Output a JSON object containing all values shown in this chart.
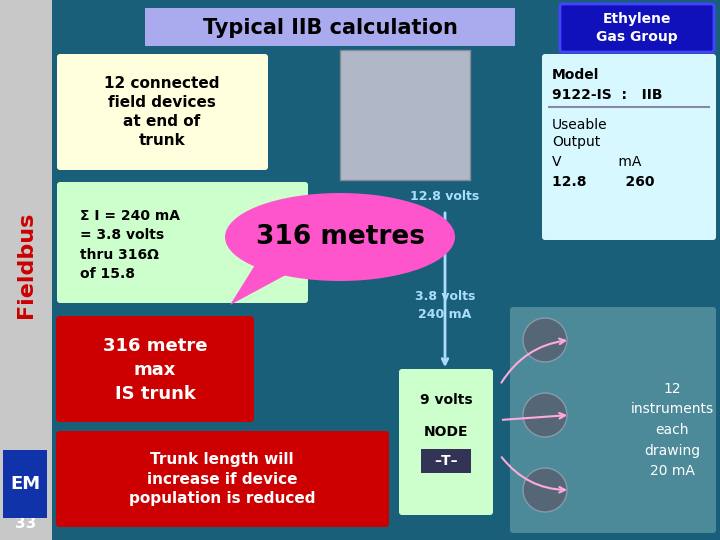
{
  "title": "Typical IIB calculation",
  "bg_color": "#1a5f7a",
  "sidebar_color": "#c8c8c8",
  "sidebar_text": "Fieldbus",
  "sidebar_text_color": "#cc0000",
  "title_bar_bg": "#aaaaee",
  "ethylene_box": {
    "text": "Ethylene\nGas Group",
    "bg": "#1111bb",
    "text_color": "#ffffff"
  },
  "devices_box": {
    "text": "12 connected\nfield devices\nat end of\ntrunk",
    "bg": "#ffffdd",
    "text_color": "#000000"
  },
  "model_box": {
    "line1": "Model",
    "line2": "9122-IS  :   IIB",
    "line3": "Useable\nOutput\nV           mA\n12.8       260",
    "bg": "#d8f8ff",
    "text_color": "#000000"
  },
  "calc_box": {
    "text": "Σ I = 240 mA\n= 3.8 volts\nthru 316Ω\nof 15.8",
    "bg": "#ccffcc",
    "text_color": "#000000"
  },
  "bubble": {
    "text": "316 metres",
    "bg": "#ff55cc",
    "text_color": "#000000"
  },
  "volts_label1": "12.8 volts",
  "volts_label2": "3.8 volts\n240 mA",
  "volts_label3": "9 volts",
  "node_text1": "NODE",
  "node_text2": "–T–",
  "node_bg": "#ccffcc",
  "red_box1": {
    "text": "316 metre\nmax\nIS trunk",
    "bg": "#cc0000",
    "text_color": "#ffffff"
  },
  "red_box2": {
    "text": "Trunk length will\nincrease if device\npopulation is reduced",
    "bg": "#cc0000",
    "text_color": "#ffffff"
  },
  "instruments_text": "12\ninstruments\neach\ndrawing\n20 mA",
  "label_33": "33",
  "label_color": "#ffffff",
  "arrow_color": "#aaddff",
  "volts_color": "#aaddff",
  "pink_arrow_color": "#ffaadd"
}
